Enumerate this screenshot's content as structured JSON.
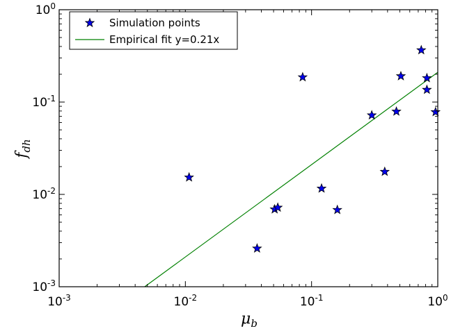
{
  "chart_data": {
    "type": "scatter",
    "title": "",
    "xlabel": {
      "base": "μ",
      "sub": "b"
    },
    "ylabel": {
      "base": "f",
      "sub": "dh"
    },
    "xscale": "log",
    "yscale": "log",
    "xlim": [
      0.001,
      1
    ],
    "ylim": [
      0.001,
      1
    ],
    "grid": false,
    "legend_position": "top-left",
    "xticks": [
      {
        "base": "10",
        "exp": "-3",
        "value": 0.001
      },
      {
        "base": "10",
        "exp": "-2",
        "value": 0.01
      },
      {
        "base": "10",
        "exp": "-1",
        "value": 0.1
      },
      {
        "base": "10",
        "exp": "0",
        "value": 1
      }
    ],
    "yticks": [
      {
        "base": "10",
        "exp": "-3",
        "value": 0.001
      },
      {
        "base": "10",
        "exp": "-2",
        "value": 0.01
      },
      {
        "base": "10",
        "exp": "-1",
        "value": 0.1
      },
      {
        "base": "10",
        "exp": "0",
        "value": 1
      }
    ],
    "series": [
      {
        "name": "Simulation points",
        "kind": "scatter",
        "marker": "star",
        "color": "#0000ee",
        "points": [
          {
            "x": 0.0107,
            "y": 0.0153
          },
          {
            "x": 0.037,
            "y": 0.0026
          },
          {
            "x": 0.051,
            "y": 0.0069
          },
          {
            "x": 0.054,
            "y": 0.0072
          },
          {
            "x": 0.085,
            "y": 0.186
          },
          {
            "x": 0.12,
            "y": 0.0116
          },
          {
            "x": 0.16,
            "y": 0.0068
          },
          {
            "x": 0.3,
            "y": 0.072
          },
          {
            "x": 0.38,
            "y": 0.0176
          },
          {
            "x": 0.47,
            "y": 0.079
          },
          {
            "x": 0.51,
            "y": 0.191
          },
          {
            "x": 0.74,
            "y": 0.365
          },
          {
            "x": 0.82,
            "y": 0.182
          },
          {
            "x": 0.82,
            "y": 0.136
          },
          {
            "x": 0.96,
            "y": 0.078
          }
        ]
      },
      {
        "name": "Empirical fit y=0.21x",
        "kind": "line",
        "color": "#008000",
        "slope": 0.21
      }
    ]
  }
}
